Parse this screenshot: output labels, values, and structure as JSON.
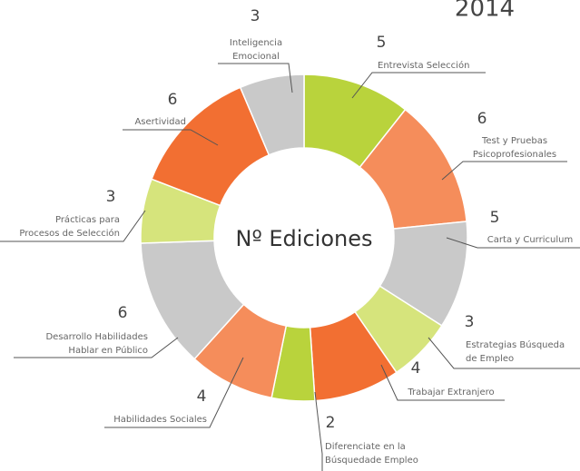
{
  "chart_data": {
    "type": "donut",
    "title": "2014",
    "center_label": "Nº Ediciones",
    "categories": [
      [
        "Entrevista Selección"
      ],
      [
        "Test y Pruebas",
        "Psicoprofesionales"
      ],
      [
        "Carta y Curriculum"
      ],
      [
        "Estrategias Búsqueda",
        "de Empleo"
      ],
      [
        "Trabajar Extranjero"
      ],
      [
        "Diferenciate en la",
        "Búsquedade Empleo"
      ],
      [
        "Habilidades Sociales"
      ],
      [
        "Desarrollo Habilidades",
        "Hablar en Público"
      ],
      [
        "Prácticas para",
        "Procesos de Selección"
      ],
      [
        "Asertividad"
      ],
      [
        "Inteligencia",
        "Emocional"
      ]
    ],
    "values": [
      5,
      6,
      5,
      3,
      4,
      2,
      4,
      6,
      3,
      6,
      3
    ],
    "colors": [
      "#b9d33c",
      "#f58d5b",
      "#c9c9c9",
      "#d6e47c",
      "#f26f32",
      "#b9d33c",
      "#f58d5b",
      "#c9c9c9",
      "#d6e47c",
      "#f26f32",
      "#c9c9c9"
    ]
  }
}
